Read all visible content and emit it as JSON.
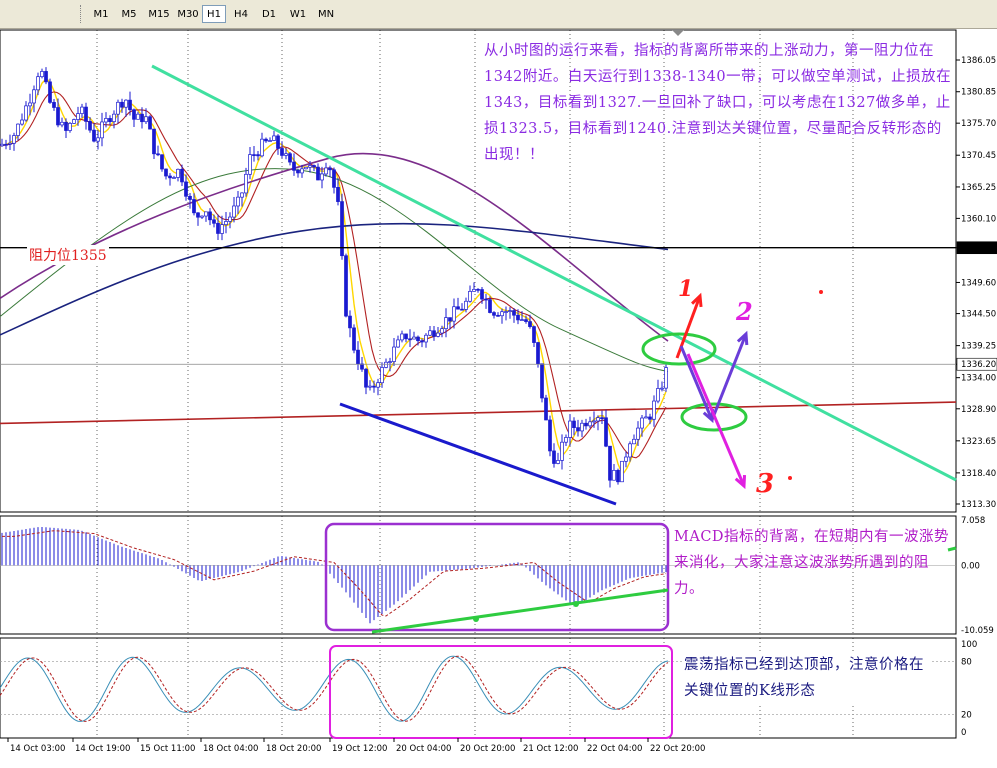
{
  "toolbar": {
    "timeframes": [
      {
        "label": "M1",
        "active": false
      },
      {
        "label": "M5",
        "active": false
      },
      {
        "label": "M15",
        "active": false
      },
      {
        "label": "M30",
        "active": false
      },
      {
        "label": "H1",
        "active": true
      },
      {
        "label": "H4",
        "active": false
      },
      {
        "label": "D1",
        "active": false
      },
      {
        "label": "W1",
        "active": false
      },
      {
        "label": "MN",
        "active": false
      }
    ]
  },
  "chart_data": {
    "type": "candlestick",
    "price_axis": {
      "ticks": [
        "1386.05",
        "1380.85",
        "1375.70",
        "1370.45",
        "1365.25",
        "1360.10",
        "1355.29",
        "1349.60",
        "1344.50",
        "1339.25",
        "1336.20",
        "1334.00",
        "1328.90",
        "1323.65",
        "1318.40",
        "1313.30"
      ],
      "range": [
        1312.5,
        1388.5
      ],
      "bid_price": "1336.20",
      "resistance_price": "1355.29"
    },
    "time_axis": {
      "ticks": [
        "14 Oct 03:00",
        "14 Oct 19:00",
        "15 Oct 11:00",
        "18 Oct 04:00",
        "18 Oct 20:00",
        "19 Oct 12:00",
        "20 Oct 04:00",
        "20 Oct 20:00",
        "21 Oct 12:00",
        "22 Oct 04:00",
        "22 Oct 20:00"
      ]
    },
    "macd_axis": {
      "ticks": [
        "7.058",
        "0.00",
        "-10.059"
      ],
      "range": [
        -10.059,
        7.058
      ]
    },
    "stoch_axis": {
      "ticks": [
        "100",
        "80",
        "20",
        "0"
      ],
      "range": [
        0,
        100
      ]
    },
    "resistance_label": "阻力位1355",
    "annotations": {
      "main_text": "从小时图的运行来看，指标的背离所带来的上涨动力，第一阻力位在1342附近。白天运行到1338-1340一带，可以做空单测试，止损放在1343，目标看到1327.一旦回补了缺口，可以考虑在1327做多单，止损1323.5，目标看到1240.注意到达关键位置，尽量配合反转形态的出现！！",
      "macd_text": "MACD指标的背离，在短期内有一波涨势来消化，大家注意这波涨势所遇到的阻力。",
      "stoch_text": "震荡指标已经到达顶部，注意价格在关键位置的K线形态",
      "scenario_labels": [
        "1",
        "2",
        "3"
      ]
    },
    "colors": {
      "bull_candle": "#ffffff",
      "bear_candle": "#1a1ad0",
      "ma_fast": "#ffd700",
      "ma_slow": "#b22222",
      "ma_green": "#3a7a3a",
      "ma_purple": "#7b2d8b",
      "ma_navy": "#1a237e",
      "trendline": "#40e0a0",
      "support_line": "#1a1acc",
      "resistance_line": "#000000",
      "annotation_red": "#ff2020",
      "annotation_purple": "#6a3dd8",
      "annotation_magenta": "#e020e0",
      "annotation_green": "#2ecc40"
    }
  }
}
